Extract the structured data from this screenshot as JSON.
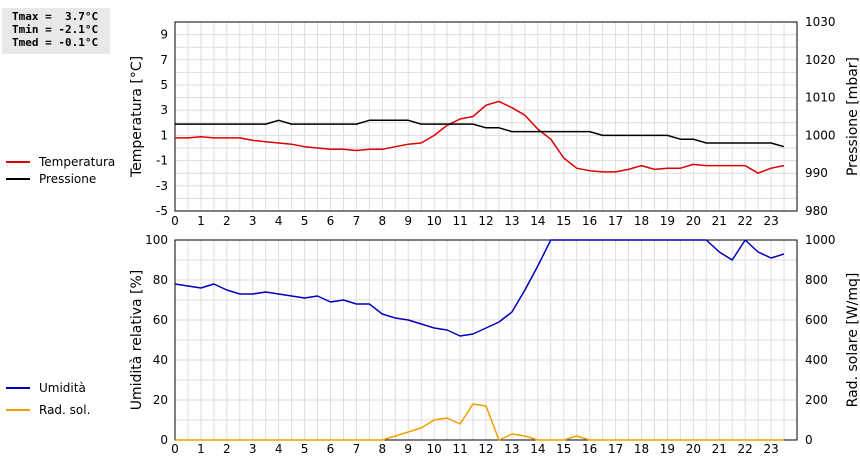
{
  "stats": [
    {
      "label": "Tmax",
      "text": "Tmax =  3.7°C"
    },
    {
      "label": "Tmin",
      "text": "Tmin = -2.1°C"
    },
    {
      "label": "Tmed",
      "text": "Tmed = -0.1°C"
    }
  ],
  "colors": {
    "temperature": "#dd0000",
    "pressure": "#000000",
    "humidity": "#0000bb",
    "solar": "#f0a000",
    "grid": "#dddddd"
  },
  "legend": {
    "temperature": "Temperatura",
    "pressure": "Pressione",
    "humidity": "Umidità",
    "solar": "Rad. sol."
  },
  "chart_data": [
    {
      "type": "line",
      "ylabel": "Temperatura [°C]",
      "ylabel_right": "Pressione [mbar]",
      "xlim": [
        0,
        24
      ],
      "ylim": [
        -5,
        10
      ],
      "ylim_right": [
        980,
        1030
      ],
      "x_ticks": [
        "0",
        "1",
        "2",
        "3",
        "4",
        "5",
        "6",
        "7",
        "8",
        "9",
        "10",
        "11",
        "12",
        "13",
        "14",
        "15",
        "16",
        "17",
        "18",
        "19",
        "20",
        "21",
        "22",
        "23"
      ],
      "y_ticks": [
        "-5",
        "-3",
        "-1",
        "1",
        "3",
        "5",
        "7",
        "9"
      ],
      "y_ticks_right": [
        "980",
        "990",
        "1000",
        "1010",
        "1020",
        "1030"
      ],
      "grid": true,
      "series": [
        {
          "name": "Temperatura",
          "axis": "left",
          "x": [
            0,
            0.5,
            1,
            1.5,
            2,
            2.5,
            3,
            3.5,
            4,
            4.5,
            5,
            5.5,
            6,
            6.5,
            7,
            7.5,
            8,
            8.5,
            9,
            9.5,
            10,
            10.5,
            11,
            11.5,
            12,
            12.5,
            13,
            13.5,
            14,
            14.5,
            15,
            15.5,
            16,
            16.5,
            17,
            17.5,
            18,
            18.5,
            19,
            19.5,
            20,
            20.5,
            21,
            21.5,
            22,
            22.5,
            23,
            23.5
          ],
          "values": [
            0.8,
            0.8,
            0.9,
            0.8,
            0.8,
            0.8,
            0.6,
            0.5,
            0.4,
            0.3,
            0.1,
            0,
            -0.1,
            -0.1,
            -0.2,
            -0.1,
            -0.1,
            0.1,
            0.3,
            0.4,
            1,
            1.8,
            2.3,
            2.5,
            3.4,
            3.7,
            3.2,
            2.6,
            1.5,
            0.7,
            -0.8,
            -1.6,
            -1.8,
            -1.9,
            -1.9,
            -1.7,
            -1.4,
            -1.7,
            -1.6,
            -1.6,
            -1.3,
            -1.4,
            -1.4,
            -1.4,
            -1.4,
            -2,
            -1.6,
            -1.4
          ]
        },
        {
          "name": "Pressione",
          "axis": "right",
          "x": [
            0,
            0.5,
            1,
            1.5,
            2,
            2.5,
            3,
            3.5,
            4,
            4.5,
            5,
            5.5,
            6,
            6.5,
            7,
            7.5,
            8,
            8.5,
            9,
            9.5,
            10,
            10.5,
            11,
            11.5,
            12,
            12.5,
            13,
            13.5,
            14,
            14.5,
            15,
            15.5,
            16,
            16.5,
            17,
            17.5,
            18,
            18.5,
            19,
            19.5,
            20,
            20.5,
            21,
            21.5,
            22,
            22.5,
            23,
            23.5
          ],
          "values": [
            1003,
            1003,
            1003,
            1003,
            1003,
            1003,
            1003,
            1003,
            1004,
            1003,
            1003,
            1003,
            1003,
            1003,
            1003,
            1004,
            1004,
            1004,
            1004,
            1003,
            1003,
            1003,
            1003,
            1003,
            1002,
            1002,
            1001,
            1001,
            1001,
            1001,
            1001,
            1001,
            1001,
            1000,
            1000,
            1000,
            1000,
            1000,
            1000,
            999,
            999,
            998,
            998,
            998,
            998,
            998,
            998,
            997
          ]
        }
      ]
    },
    {
      "type": "line",
      "ylabel": "Umidità relativa [%]",
      "ylabel_right": "Rad. solare [W/mq]",
      "xlim": [
        0,
        24
      ],
      "ylim": [
        0,
        100
      ],
      "ylim_right": [
        0,
        1000
      ],
      "x_ticks": [
        "0",
        "1",
        "2",
        "3",
        "4",
        "5",
        "6",
        "7",
        "8",
        "9",
        "10",
        "11",
        "12",
        "13",
        "14",
        "15",
        "16",
        "17",
        "18",
        "19",
        "20",
        "21",
        "22",
        "23"
      ],
      "y_ticks": [
        "0",
        "20",
        "40",
        "60",
        "80",
        "100"
      ],
      "y_ticks_right": [
        "0",
        "200",
        "400",
        "600",
        "800",
        "1000"
      ],
      "grid": true,
      "series": [
        {
          "name": "Umidità",
          "axis": "left",
          "x": [
            0,
            0.5,
            1,
            1.5,
            2,
            2.5,
            3,
            3.5,
            4,
            4.5,
            5,
            5.5,
            6,
            6.5,
            7,
            7.5,
            8,
            8.5,
            9,
            9.5,
            10,
            10.5,
            11,
            11.5,
            12,
            12.5,
            13,
            13.5,
            14,
            14.5,
            15,
            15.5,
            16,
            16.5,
            17,
            17.5,
            18,
            18.5,
            19,
            19.5,
            20,
            20.5,
            21,
            21.5,
            22,
            22.5,
            23,
            23.5
          ],
          "values": [
            78,
            77,
            76,
            78,
            75,
            73,
            73,
            74,
            73,
            72,
            71,
            72,
            69,
            70,
            68,
            68,
            63,
            61,
            60,
            58,
            56,
            55,
            52,
            53,
            56,
            59,
            64,
            75,
            87,
            100,
            100,
            100,
            100,
            100,
            100,
            100,
            100,
            100,
            100,
            100,
            100,
            100,
            94,
            90,
            100,
            94,
            91,
            93
          ]
        },
        {
          "name": "Rad. sol.",
          "axis": "right",
          "x": [
            0,
            0.5,
            1,
            1.5,
            2,
            2.5,
            3,
            3.5,
            4,
            4.5,
            5,
            5.5,
            6,
            6.5,
            7,
            7.5,
            8,
            8.5,
            9,
            9.5,
            10,
            10.5,
            11,
            11.5,
            12,
            12.5,
            13,
            13.5,
            14,
            14.5,
            15,
            15.5,
            16,
            16.5,
            17,
            17.5,
            18,
            18.5,
            19,
            19.5,
            20,
            20.5,
            21,
            21.5,
            22,
            22.5,
            23,
            23.5
          ],
          "values": [
            0,
            0,
            0,
            0,
            0,
            0,
            0,
            0,
            0,
            0,
            0,
            0,
            0,
            0,
            0,
            0,
            0,
            20,
            40,
            60,
            100,
            110,
            80,
            180,
            170,
            0,
            30,
            20,
            0,
            0,
            0,
            20,
            0,
            0,
            0,
            0,
            0,
            0,
            0,
            0,
            0,
            0,
            0,
            0,
            0,
            0,
            0,
            0
          ]
        }
      ]
    }
  ]
}
